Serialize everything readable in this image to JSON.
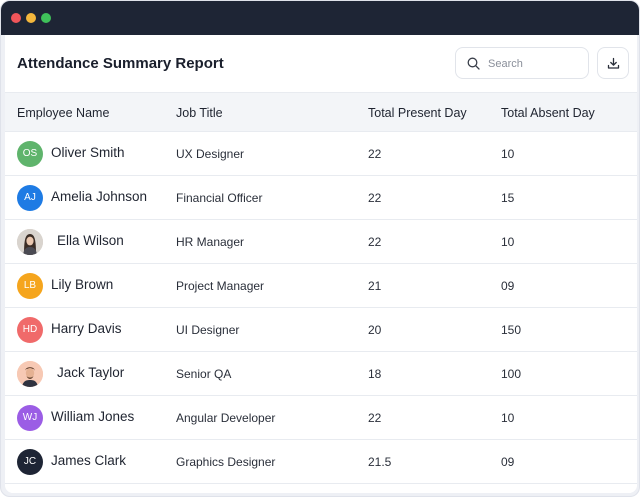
{
  "report": {
    "title": "Attendance Summary Report"
  },
  "search": {
    "placeholder": "Search"
  },
  "table": {
    "headers": {
      "name": "Employee Name",
      "job": "Job Title",
      "present": "Total Present Day",
      "absent": "Total Absent Day"
    },
    "rows": [
      {
        "initials": "OS",
        "avatar_color": "#5fb46c",
        "name": "Oliver Smith",
        "job": "UX Designer",
        "present": "22",
        "absent": "10"
      },
      {
        "initials": "AJ",
        "avatar_color": "#1e7be4",
        "name": "Amelia Johnson",
        "job": "Financial Officer",
        "present": "22",
        "absent": "15"
      },
      {
        "initials": "",
        "avatar_color": "#cfc9c2",
        "name": "Ella Wilson",
        "job": "HR Manager",
        "present": "22",
        "absent": "10"
      },
      {
        "initials": "LB",
        "avatar_color": "#f5a51d",
        "name": "Lily Brown",
        "job": "Project Manager",
        "present": "21",
        "absent": "09"
      },
      {
        "initials": "HD",
        "avatar_color": "#f06a6a",
        "name": "Harry Davis",
        "job": "UI Designer",
        "present": "20",
        "absent": "150"
      },
      {
        "initials": "",
        "avatar_color": "#f7c9b4",
        "name": "Jack Taylor",
        "job": "Senior QA",
        "present": "18",
        "absent": "100"
      },
      {
        "initials": "WJ",
        "avatar_color": "#9b5de5",
        "name": "William Jones",
        "job": "Angular Developer",
        "present": "22",
        "absent": "10"
      },
      {
        "initials": "JC",
        "avatar_color": "#1e2535",
        "name": "James Clark",
        "job": "Graphics Designer",
        "present": "21.5",
        "absent": "09"
      }
    ]
  }
}
